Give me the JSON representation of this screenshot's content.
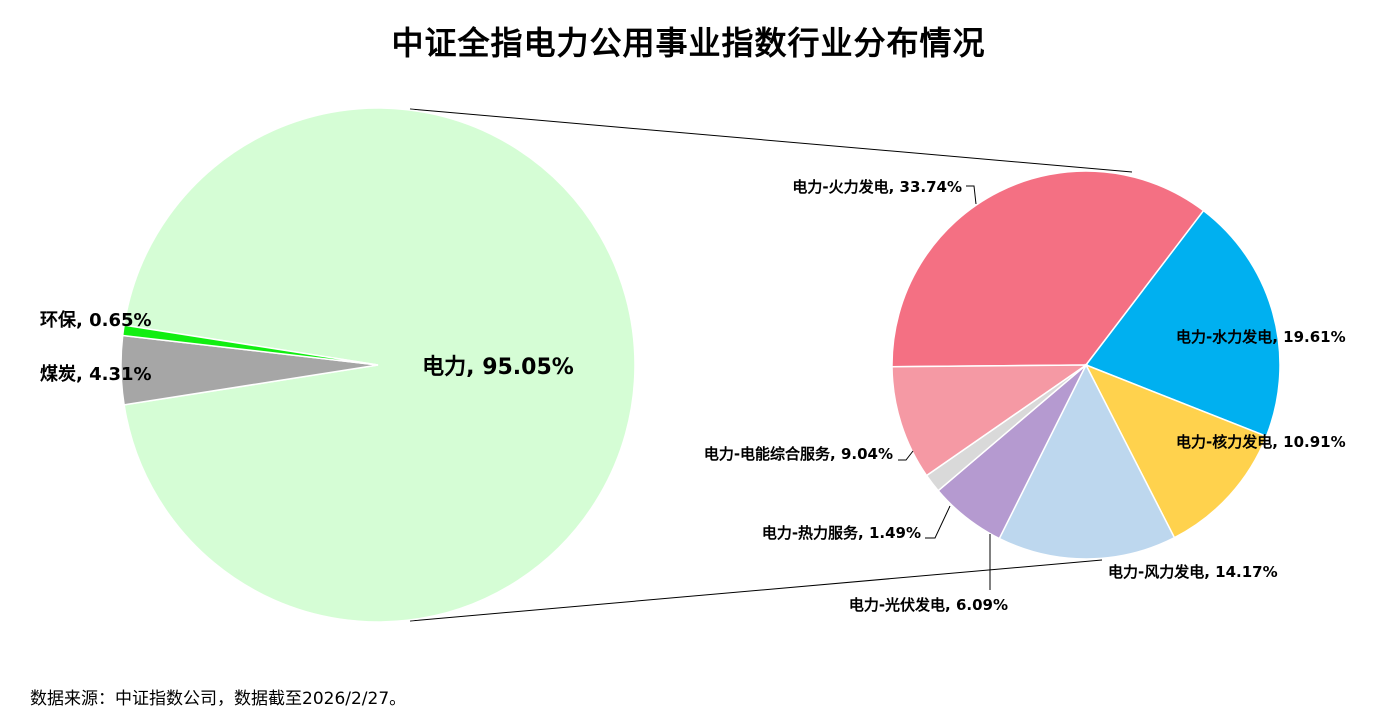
{
  "title": "中证全指电力公用事业指数行业分布情况",
  "source_note": "数据来源：中证指数公司，数据截至2026/2/27。",
  "chart_data": [
    {
      "type": "pie",
      "slices": [
        {
          "label": "电力, 95.05%",
          "name": "电力",
          "value": 95.05,
          "color": "#d5fdd5"
        },
        {
          "label": "煤炭, 4.31%",
          "name": "煤炭",
          "value": 4.31,
          "color": "#a6a6a6"
        },
        {
          "label": "环保, 0.65%",
          "name": "环保",
          "value": 0.65,
          "color": "#11ee11"
        }
      ]
    },
    {
      "type": "pie",
      "breakdown_of": "电力",
      "slices": [
        {
          "label": "电力-火力发电, 33.74%",
          "name": "电力-火力发电",
          "value": 33.74,
          "color": "#f47083"
        },
        {
          "label": "电力-水力发电, 19.61%",
          "name": "电力-水力发电",
          "value": 19.61,
          "color": "#00b0f0"
        },
        {
          "label": "电力-核力发电, 10.91%",
          "name": "电力-核力发电",
          "value": 10.91,
          "color": "#ffd24d"
        },
        {
          "label": "电力-风力发电, 14.17%",
          "name": "电力-风力发电",
          "value": 14.17,
          "color": "#bdd7ee"
        },
        {
          "label": "电力-光伏发电, 6.09%",
          "name": "电力-光伏发电",
          "value": 6.09,
          "color": "#b59ad0"
        },
        {
          "label": "电力-热力服务, 1.49%",
          "name": "电力-热力服务",
          "value": 1.49,
          "color": "#d9d9d9"
        },
        {
          "label": "电力-电能综合服务, 9.04%",
          "name": "电力-电能综合服务",
          "value": 9.04,
          "color": "#f599a4"
        }
      ]
    }
  ]
}
